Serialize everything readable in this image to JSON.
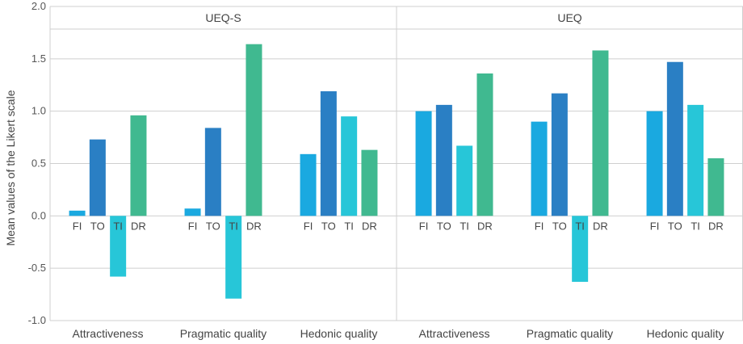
{
  "chart_data": {
    "type": "bar",
    "ylabel": "Mean values of the Likert scale",
    "ylim": [
      -1.0,
      2.0
    ],
    "yticks": [
      "-1.0",
      "-0.5",
      "0.0",
      "0.5",
      "1.0",
      "1.5",
      "2.0"
    ],
    "ytick_values": [
      -1.0,
      -0.5,
      0.0,
      0.5,
      1.0,
      1.5,
      2.0
    ],
    "bar_labels": [
      "FI",
      "TO",
      "TI",
      "DR"
    ],
    "colors": {
      "FI": "#1aa9e0",
      "TO": "#2a7fc4",
      "TI": "#27c6d8",
      "DR": "#40b990"
    },
    "panels": [
      {
        "title": "UEQ-S",
        "groups": [
          {
            "category": "Attractiveness",
            "values": [
              0.05,
              0.73,
              -0.58,
              0.96
            ]
          },
          {
            "category": "Pragmatic quality",
            "values": [
              0.07,
              0.84,
              -0.79,
              1.64
            ]
          },
          {
            "category": "Hedonic quality",
            "values": [
              0.59,
              1.19,
              0.95,
              0.63
            ]
          }
        ]
      },
      {
        "title": "UEQ",
        "groups": [
          {
            "category": "Attractiveness",
            "values": [
              1.0,
              1.06,
              0.67,
              1.36
            ]
          },
          {
            "category": "Pragmatic quality",
            "values": [
              0.9,
              1.17,
              -0.63,
              1.58
            ]
          },
          {
            "category": "Hedonic quality",
            "values": [
              1.0,
              1.47,
              1.06,
              0.55
            ]
          }
        ]
      }
    ]
  }
}
